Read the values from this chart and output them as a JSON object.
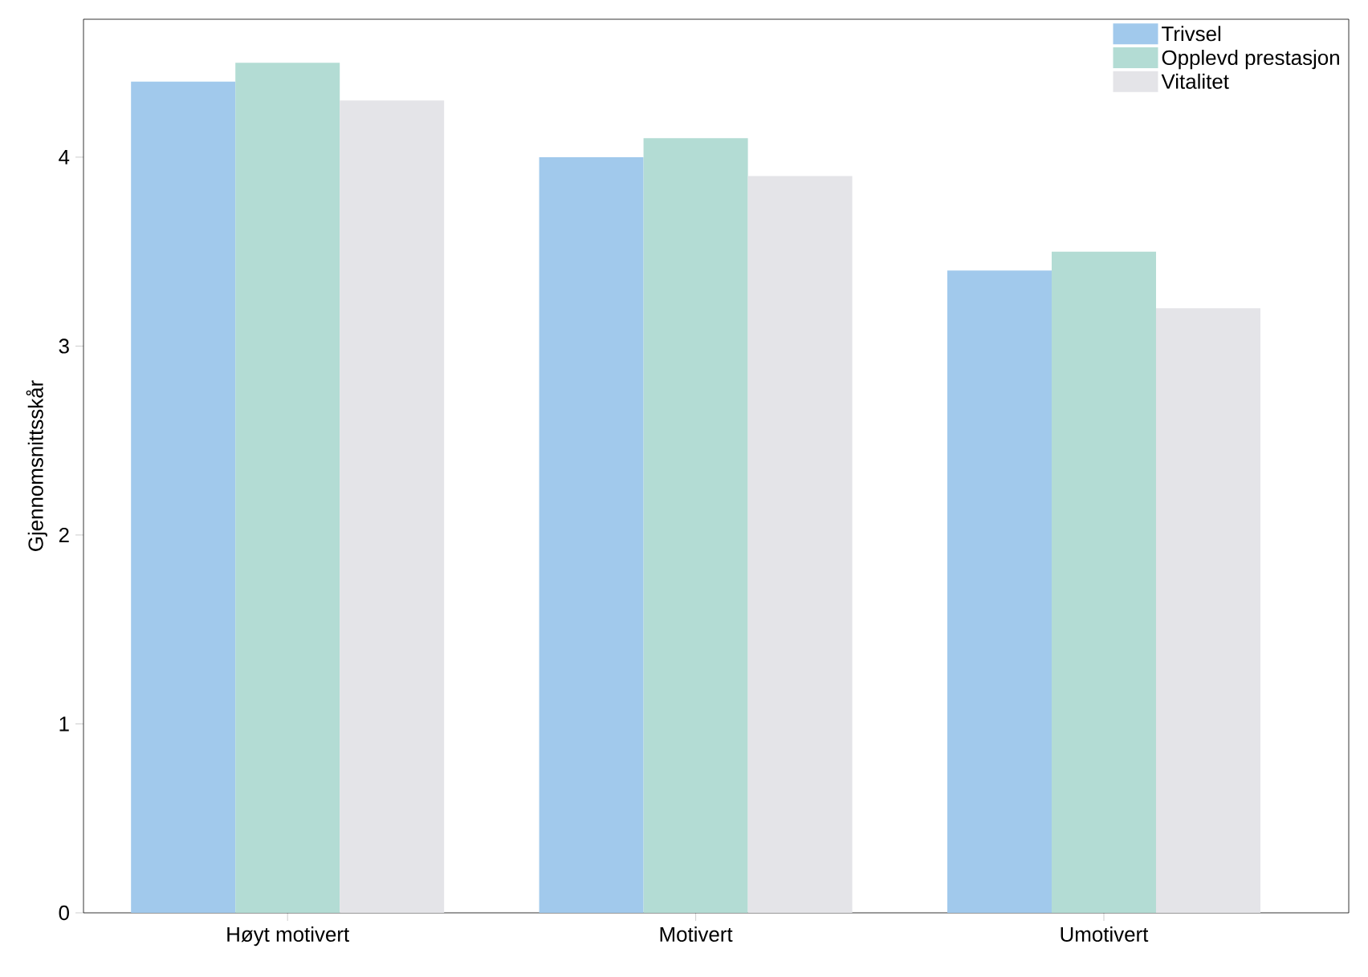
{
  "chart_data": {
    "type": "bar",
    "ylabel": "Gjennomsnittsskår",
    "categories": [
      "Høyt motivert",
      "Motivert",
      "Umotivert"
    ],
    "series": [
      {
        "name": "Trivsel",
        "color": "#a1c9ec",
        "values": [
          4.4,
          4.0,
          3.4
        ]
      },
      {
        "name": "Opplevd prestasjon",
        "color": "#b3dcd4",
        "values": [
          4.5,
          4.1,
          3.5
        ]
      },
      {
        "name": "Vitalitet",
        "color": "#e4e4e8",
        "values": [
          4.3,
          3.9,
          3.2
        ]
      }
    ],
    "ylim": [
      0,
      4.73
    ],
    "yticks": [
      0,
      1,
      2,
      3,
      4
    ],
    "grid": false,
    "legend": "top right"
  }
}
